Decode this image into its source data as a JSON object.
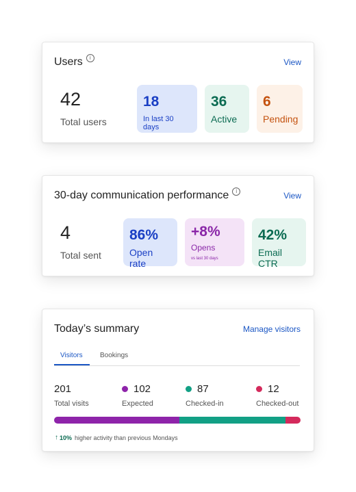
{
  "users_card": {
    "title": "Users",
    "info_icon": "i",
    "view_label": "View",
    "total_value": "42",
    "total_label": "Total users",
    "tiles": [
      {
        "value": "18",
        "label": "In last 30 days"
      },
      {
        "value": "36",
        "label": "Active"
      },
      {
        "value": "6",
        "label": "Pending"
      }
    ]
  },
  "comm_card": {
    "title": "30-day communication performance",
    "info_icon": "i",
    "view_label": "View",
    "total_value": "4",
    "total_label": "Total sent",
    "tiles": [
      {
        "value": "86%",
        "label": "Open rate"
      },
      {
        "value": "+8%",
        "label": "Opens",
        "sub": "vs last 30 days"
      },
      {
        "value": "42%",
        "label": "Email CTR"
      }
    ]
  },
  "summary_card": {
    "title": "Today’s summary",
    "manage_label": "Manage visitors",
    "tabs": [
      {
        "label": "Visitors",
        "active": true
      },
      {
        "label": "Bookings",
        "active": false
      }
    ],
    "stats": [
      {
        "value": "201",
        "label": "Total visits"
      },
      {
        "value": "102",
        "label": "Expected",
        "color": "#8e24aa"
      },
      {
        "value": "87",
        "label": "Checked-in",
        "color": "#12a085"
      },
      {
        "value": "12",
        "label": "Checked-out",
        "color": "#d42a5c"
      }
    ],
    "bar_segments": [
      {
        "name": "Expected",
        "value": 102,
        "color": "#8e24aa"
      },
      {
        "name": "Checked-in",
        "value": 87,
        "color": "#12a085"
      },
      {
        "name": "Checked-out",
        "value": 12,
        "color": "#d42a5c"
      }
    ],
    "note_icon": "↑",
    "note_percent": "10%",
    "note_text": "higher activity than previous Mondays"
  },
  "colors": {
    "link": "#1a56c4",
    "tile_blue": "#dde6fb",
    "tile_green": "#e6f5ef",
    "tile_orange": "#fdf1e7",
    "tile_purple": "#f4e3f7"
  }
}
